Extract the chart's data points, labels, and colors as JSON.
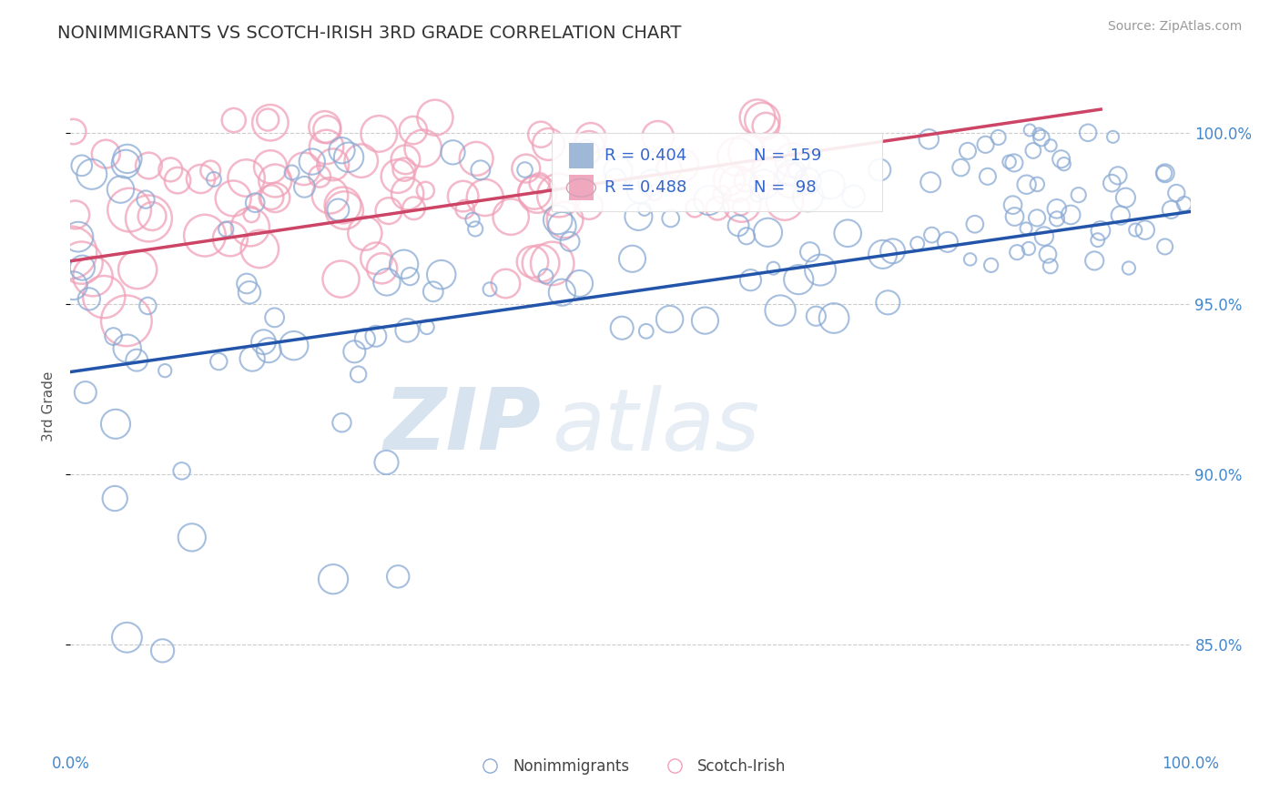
{
  "title": "NONIMMIGRANTS VS SCOTCH-IRISH 3RD GRADE CORRELATION CHART",
  "source": "Source: ZipAtlas.com",
  "ylabel": "3rd Grade",
  "ytick_labels": [
    "85.0%",
    "90.0%",
    "95.0%",
    "100.0%"
  ],
  "ytick_values": [
    0.85,
    0.9,
    0.95,
    1.0
  ],
  "xlim": [
    0.0,
    1.0
  ],
  "ylim": [
    0.82,
    1.02
  ],
  "legend_blue_R": "R = 0.404",
  "legend_blue_N": "N = 159",
  "legend_pink_R": "R = 0.488",
  "legend_pink_N": "N =  98",
  "blue_color": "#8aaad4",
  "pink_color": "#f0a0b8",
  "blue_line_color": "#2255aa",
  "pink_line_color": "#cc4466",
  "watermark_zip": "ZIP",
  "watermark_atlas": "atlas",
  "blue_trend_x": [
    0.0,
    1.0
  ],
  "blue_trend_y": [
    0.93,
    0.977
  ],
  "pink_trend_x": [
    0.0,
    0.92
  ],
  "pink_trend_y": [
    0.9625,
    1.007
  ]
}
